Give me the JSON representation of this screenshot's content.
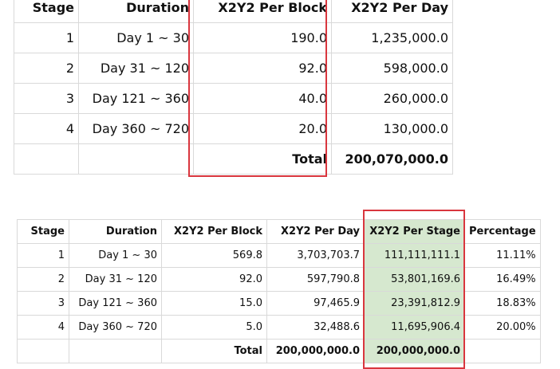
{
  "table1": {
    "headers": [
      "Stage",
      "Duration",
      "X2Y2 Per Block",
      "X2Y2 Per Day"
    ],
    "rows": [
      [
        "1",
        "Day 1 ~ 30",
        "190.0",
        "1,235,000.0"
      ],
      [
        "2",
        "Day 31 ~ 120",
        "92.0",
        "598,000.0"
      ],
      [
        "3",
        "Day 121 ~ 360",
        "40.0",
        "260,000.0"
      ],
      [
        "4",
        "Day 360 ~ 720",
        "20.0",
        "130,000.0"
      ]
    ],
    "total_label": "Total",
    "total_value": "200,070,000.0"
  },
  "table2": {
    "headers": [
      "Stage",
      "Duration",
      "X2Y2 Per Block",
      "X2Y2 Per Day",
      "X2Y2 Per Stage",
      "Percentage"
    ],
    "rows": [
      [
        "1",
        "Day 1 ~ 30",
        "569.8",
        "3,703,703.7",
        "111,111,111.1",
        "11.11%"
      ],
      [
        "2",
        "Day 31 ~ 120",
        "92.0",
        "597,790.8",
        "53,801,169.6",
        "16.49%"
      ],
      [
        "3",
        "Day 121 ~ 360",
        "15.0",
        "97,465.9",
        "23,391,812.9",
        "18.83%"
      ],
      [
        "4",
        "Day 360 ~ 720",
        "5.0",
        "32,488.6",
        "11,695,906.4",
        "20.00%"
      ]
    ],
    "total_label": "Total",
    "total_per_day": "200,000,000.0",
    "total_per_stage": "200,000,000.0"
  },
  "colors": {
    "highlight_fill": "#d6e8cf",
    "highlight_border": "#d9363e",
    "grid": "#d9d9d9"
  }
}
